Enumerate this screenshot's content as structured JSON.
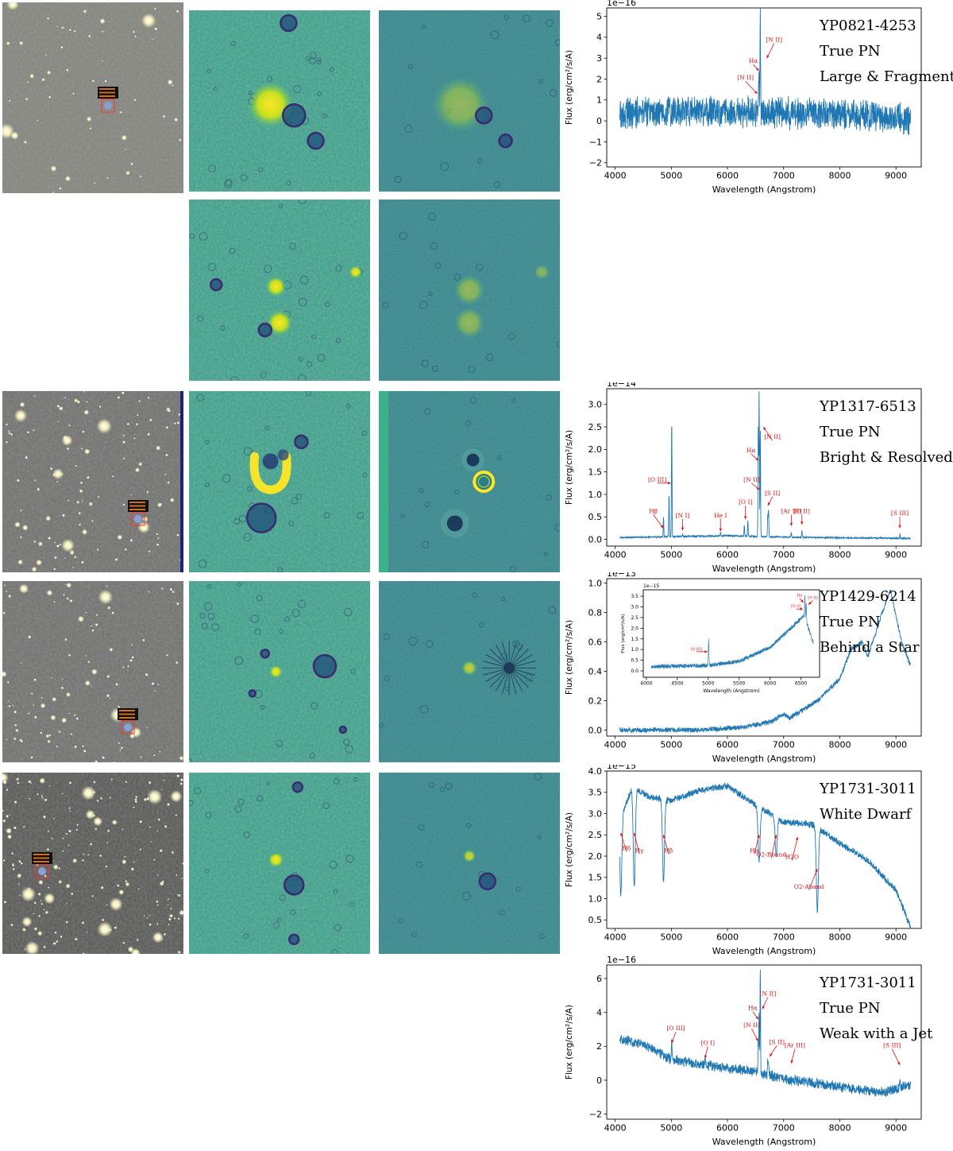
{
  "colors": {
    "spectrum": "#1f77b4",
    "annotation": "#e01010",
    "optical_bg": "#80807a",
    "viridis_dark": "#31688e",
    "viridis_bright": "#fde725"
  },
  "rows": [
    {
      "source_box": {
        "lines": [
          "173.935189",
          "42.891168",
          "n/a"
        ]
      },
      "label": {
        "id": "YP0821-4253",
        "class": "True PN",
        "note": "Large & Fragmented"
      },
      "chart_data": {
        "type": "line",
        "xlabel": "Wavelength (Angstrom)",
        "ylabel": "Flux (erg/cm²/s/A)",
        "y_offset_label": "1e−16",
        "xlim": [
          3850,
          9450
        ],
        "ylim": [
          -2.2,
          5.4
        ],
        "xticks": [
          4000,
          5000,
          6000,
          7000,
          8000,
          9000
        ],
        "yticks": [
          -2,
          -1,
          0,
          1,
          2,
          3,
          4,
          5
        ],
        "continuum": [
          [
            4100,
            0.4
          ],
          [
            5000,
            0.4
          ],
          [
            6000,
            0.45
          ],
          [
            7000,
            0.35
          ],
          [
            8000,
            0.35
          ],
          [
            9200,
            0.1
          ]
        ],
        "noise": 0.85,
        "lines": [
          [
            6548,
            0.8
          ],
          [
            6563,
            2.0
          ],
          [
            6584,
            4.8
          ]
        ],
        "annotations": [
          {
            "text": "[N II]",
            "x": 6700,
            "y": 3.0,
            "tx": 6830,
            "ty": 3.7
          },
          {
            "text": "Hα",
            "x": 6560,
            "y": 2.4,
            "tx": 6460,
            "ty": 2.7
          },
          {
            "text": "[N II]",
            "x": 6530,
            "y": 1.3,
            "tx": 6320,
            "ty": 1.9
          }
        ]
      }
    },
    {
      "source_box": {
        "lines": [
          "199.456789",
          "65.224918",
          "n/a"
        ]
      },
      "label": {
        "id": "YP1317-6513",
        "class": "True PN",
        "note": "Bright & Resolved"
      },
      "chart_data": {
        "type": "line",
        "xlabel": "Wavelength (Angstrom)",
        "ylabel": "Flux (erg/cm²/s/A)",
        "y_offset_label": "1e−14",
        "xlim": [
          3850,
          9450
        ],
        "ylim": [
          -0.15,
          3.35
        ],
        "xticks": [
          4000,
          5000,
          6000,
          7000,
          8000,
          9000
        ],
        "yticks": [
          0.0,
          0.5,
          1.0,
          1.5,
          2.0,
          2.5,
          3.0
        ],
        "continuum": [
          [
            4100,
            0.04
          ],
          [
            6000,
            0.08
          ],
          [
            7000,
            0.05
          ],
          [
            9200,
            0.02
          ]
        ],
        "noise": 0.02,
        "lines": [
          [
            4861,
            0.45
          ],
          [
            4959,
            0.95
          ],
          [
            5007,
            2.6
          ],
          [
            5200,
            0.06
          ],
          [
            5876,
            0.08
          ],
          [
            6300,
            0.25
          ],
          [
            6363,
            0.35
          ],
          [
            6548,
            2.4
          ],
          [
            6563,
            3.2
          ],
          [
            6584,
            2.4
          ],
          [
            6717,
            0.5
          ],
          [
            6731,
            0.6
          ],
          [
            7136,
            0.12
          ],
          [
            7325,
            0.15
          ],
          [
            9069,
            0.1
          ]
        ],
        "annotations": [
          {
            "text": "[O III]",
            "x": 4990,
            "y": 1.25,
            "tx": 4750,
            "ty": 1.25
          },
          {
            "text": "Hβ",
            "x": 4855,
            "y": 0.25,
            "tx": 4680,
            "ty": 0.55
          },
          {
            "text": "[N I]",
            "x": 5200,
            "y": 0.2,
            "tx": 5200,
            "ty": 0.45
          },
          {
            "text": "He I",
            "x": 5876,
            "y": 0.18,
            "tx": 5876,
            "ty": 0.45
          },
          {
            "text": "[O I]",
            "x": 6320,
            "y": 0.45,
            "tx": 6320,
            "ty": 0.75
          },
          {
            "text": "[N II]",
            "x": 6570,
            "y": 1.1,
            "tx": 6430,
            "ty": 1.25
          },
          {
            "text": "Hα",
            "x": 6555,
            "y": 1.75,
            "tx": 6420,
            "ty": 1.9
          },
          {
            "text": "[N II]",
            "x": 6640,
            "y": 2.5,
            "tx": 6800,
            "ty": 2.2
          },
          {
            "text": "[S II]",
            "x": 6720,
            "y": 0.75,
            "tx": 6800,
            "ty": 0.95
          },
          {
            "text": "[Ar III]",
            "x": 7136,
            "y": 0.3,
            "tx": 7136,
            "ty": 0.55
          },
          {
            "text": "[O II]",
            "x": 7325,
            "y": 0.33,
            "tx": 7325,
            "ty": 0.55
          },
          {
            "text": "[S III]",
            "x": 9069,
            "y": 0.25,
            "tx": 9069,
            "ty": 0.5
          }
        ]
      }
    },
    {
      "source_box": {
        "lines": [
          "217.324416",
          "62.239902",
          "n/a"
        ]
      },
      "label": {
        "id": "YP1429-6214",
        "class": "True PN",
        "note": "Behind a Star"
      },
      "chart_data": {
        "type": "line",
        "xlabel": "Wavelength (Angstrom)",
        "ylabel": "Flux (erg/cm²/s/A)",
        "y_offset_label": "1e−13",
        "xlim": [
          3850,
          9450
        ],
        "ylim": [
          -0.04,
          1.03
        ],
        "xticks": [
          4000,
          5000,
          6000,
          7000,
          8000,
          9000
        ],
        "yticks": [
          0.0,
          0.2,
          0.4,
          0.6,
          0.8,
          1.0
        ],
        "continuum": [
          [
            4100,
            0.0
          ],
          [
            5500,
            0.002
          ],
          [
            6300,
            0.02
          ],
          [
            6800,
            0.06
          ],
          [
            7000,
            0.11
          ],
          [
            7100,
            0.08
          ],
          [
            7600,
            0.2
          ],
          [
            8000,
            0.35
          ],
          [
            8200,
            0.55
          ],
          [
            8400,
            0.6
          ],
          [
            8500,
            0.5
          ],
          [
            8800,
            0.85
          ],
          [
            8900,
            0.95
          ],
          [
            9100,
            0.6
          ],
          [
            9250,
            0.45
          ]
        ],
        "noise": 0.02,
        "lines": [],
        "annotations": [],
        "inset": {
          "y_offset_label": "1e−15",
          "xlim": [
            3950,
            6800
          ],
          "ylim": [
            -0.3,
            3.8
          ],
          "xticks": [
            4000,
            4500,
            5000,
            5500,
            6000,
            6500
          ],
          "yticks": [
            0.0,
            0.5,
            1.0,
            1.5,
            2.0,
            2.5,
            3.0,
            3.5
          ],
          "continuum": [
            [
              4050,
              0.2
            ],
            [
              5000,
              0.25
            ],
            [
              5500,
              0.45
            ],
            [
              6000,
              1.1
            ],
            [
              6300,
              1.9
            ],
            [
              6550,
              2.6
            ],
            [
              6700,
              1.3
            ]
          ],
          "noise": 0.12,
          "lines": [
            [
              5007,
              1.2
            ],
            [
              6563,
              1.0
            ],
            [
              6584,
              0.8
            ]
          ],
          "annotations": [
            {
              "text": "[O III]",
              "x": 4990,
              "y": 0.9,
              "tx": 4810,
              "ty": 0.9
            },
            {
              "text": "Hα",
              "x": 6540,
              "y": 3.2,
              "tx": 6480,
              "ty": 3.4
            },
            {
              "text": "[N II]",
              "x": 6530,
              "y": 2.9,
              "tx": 6420,
              "ty": 2.9
            },
            {
              "text": "[N II]",
              "x": 6620,
              "y": 3.1,
              "tx": 6690,
              "ty": 3.3
            }
          ]
        }
      }
    },
    {
      "source_box": {
        "lines": [
          "263.092384",
          "30.184882",
          "n/a"
        ]
      },
      "label": {
        "id": "YP1731-3011",
        "class": "White Dwarf",
        "note": ""
      },
      "chart_data": {
        "type": "line",
        "xlabel": "Wavelength (Angstrom)",
        "ylabel": "Flux (erg/cm²/s/A)",
        "y_offset_label": "1e−15",
        "xlim": [
          3850,
          9450
        ],
        "ylim": [
          0.3,
          4.0
        ],
        "xticks": [
          4000,
          5000,
          6000,
          7000,
          8000,
          9000
        ],
        "yticks": [
          0.5,
          1.0,
          1.5,
          2.0,
          2.5,
          3.0,
          3.5,
          4.0
        ],
        "continuum": [
          [
            4100,
            2.9
          ],
          [
            4300,
            3.6
          ],
          [
            4600,
            3.4
          ],
          [
            5000,
            3.3
          ],
          [
            5500,
            3.55
          ],
          [
            6000,
            3.65
          ],
          [
            6500,
            3.2
          ],
          [
            7000,
            2.8
          ],
          [
            7500,
            2.75
          ],
          [
            8000,
            2.3
          ],
          [
            8500,
            1.9
          ],
          [
            9000,
            1.2
          ],
          [
            9250,
            0.35
          ]
        ],
        "noise": 0.09,
        "lines": [
          [
            4101,
            -1.8
          ],
          [
            4340,
            -2.3
          ],
          [
            4861,
            -1.9
          ],
          [
            6563,
            -1.3
          ],
          [
            6867,
            -0.9
          ],
          [
            7600,
            -2.0
          ]
        ],
        "annotations": [
          {
            "text": "Hδ",
            "x": 4101,
            "y": 2.55,
            "tx": 4200,
            "ty": 2.1
          },
          {
            "text": "Hγ",
            "x": 4340,
            "y": 2.55,
            "tx": 4430,
            "ty": 2.05
          },
          {
            "text": "Hβ",
            "x": 4861,
            "y": 2.5,
            "tx": 4950,
            "ty": 2.05
          },
          {
            "text": "Hα",
            "x": 6563,
            "y": 2.5,
            "tx": 6480,
            "ty": 2.05
          },
          {
            "text": "O2-Bband",
            "x": 6867,
            "y": 2.5,
            "tx": 6780,
            "ty": 1.95
          },
          {
            "text": "H2O",
            "x": 7250,
            "y": 2.45,
            "tx": 7150,
            "ty": 1.9
          },
          {
            "text": "O2-Aband",
            "x": 7600,
            "y": 1.7,
            "tx": 7450,
            "ty": 1.2
          }
        ]
      }
    },
    {
      "source_box": null,
      "label": {
        "id": "YP1731-3011",
        "class": "True PN",
        "note": "Weak with a Jet"
      },
      "chart_data": {
        "type": "line",
        "xlabel": "Wavelength (Angstrom)",
        "ylabel": "Flux (erg/cm²/s/A)",
        "y_offset_label": "1e−16",
        "xlim": [
          3850,
          9450
        ],
        "ylim": [
          -2.3,
          6.8
        ],
        "xticks": [
          4000,
          5000,
          6000,
          7000,
          8000,
          9000
        ],
        "yticks": [
          -2,
          0,
          2,
          4,
          6
        ],
        "continuum": [
          [
            4100,
            2.4
          ],
          [
            4500,
            2.1
          ],
          [
            5000,
            1.2
          ],
          [
            6000,
            0.7
          ],
          [
            6500,
            0.5
          ],
          [
            7000,
            0.1
          ],
          [
            8000,
            -0.4
          ],
          [
            8800,
            -0.7
          ],
          [
            9250,
            -0.3
          ]
        ],
        "noise": 0.35,
        "lines": [
          [
            5007,
            1.2
          ],
          [
            5600,
            0.5
          ],
          [
            6548,
            2.0
          ],
          [
            6563,
            3.5
          ],
          [
            6584,
            6.0
          ],
          [
            6717,
            0.9
          ],
          [
            6731,
            0.8
          ],
          [
            9069,
            0.7
          ]
        ],
        "annotations": [
          {
            "text": "[O III]",
            "x": 5007,
            "y": 2.2,
            "tx": 5080,
            "ty": 2.85
          },
          {
            "text": "[O I]",
            "x": 5600,
            "y": 1.3,
            "tx": 5650,
            "ty": 2.0
          },
          {
            "text": "Hα",
            "x": 6550,
            "y": 3.6,
            "tx": 6450,
            "ty": 4.05
          },
          {
            "text": "[N II]",
            "x": 6545,
            "y": 2.3,
            "tx": 6430,
            "ty": 3.05
          },
          {
            "text": "[N II]",
            "x": 6620,
            "y": 4.2,
            "tx": 6720,
            "ty": 4.9
          },
          {
            "text": "[S II]",
            "x": 6750,
            "y": 1.4,
            "tx": 6880,
            "ty": 2.05
          },
          {
            "text": "[Ar III]",
            "x": 7136,
            "y": 1.0,
            "tx": 7200,
            "ty": 1.85
          },
          {
            "text": "[S III]",
            "x": 9069,
            "y": 0.9,
            "tx": 8930,
            "ty": 1.85
          }
        ]
      }
    }
  ]
}
